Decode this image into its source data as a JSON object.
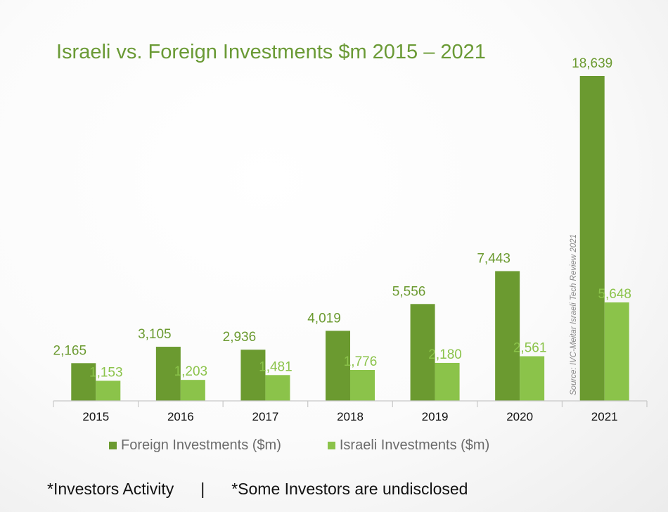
{
  "chart_data": {
    "type": "bar",
    "title": "Israeli vs. Foreign Investments $m 2015 – 2021",
    "categories": [
      "2015",
      "2016",
      "2017",
      "2018",
      "2019",
      "2020",
      "2021"
    ],
    "series": [
      {
        "name": "Foreign Investments ($m)",
        "color": "#6b9a30",
        "values": [
          2165,
          3105,
          2936,
          4019,
          5556,
          7443,
          18639
        ],
        "labels": [
          "2,165",
          "3,105",
          "2,936",
          "4,019",
          "5,556",
          "7,443",
          "18,639"
        ],
        "label_color": "#6b9a30"
      },
      {
        "name": "Israeli Investments ($m)",
        "color": "#8bc34a",
        "values": [
          1153,
          1203,
          1481,
          1776,
          2180,
          2561,
          5648
        ],
        "labels": [
          "1,153",
          "1,203",
          "1,481",
          "1,776",
          "2,180",
          "2,561",
          "5,648"
        ],
        "label_color": "#8bc34a"
      }
    ],
    "xlabel": "",
    "ylabel": "",
    "ylim": [
      0,
      18639
    ],
    "grid": false,
    "legend": "bottom",
    "source_note": "Source: IVC-Meitar Israeli Tech Review 2021"
  },
  "footnote": {
    "left": "*Investors Activity",
    "separator": "|",
    "right": "*Some Investors are undisclosed"
  }
}
